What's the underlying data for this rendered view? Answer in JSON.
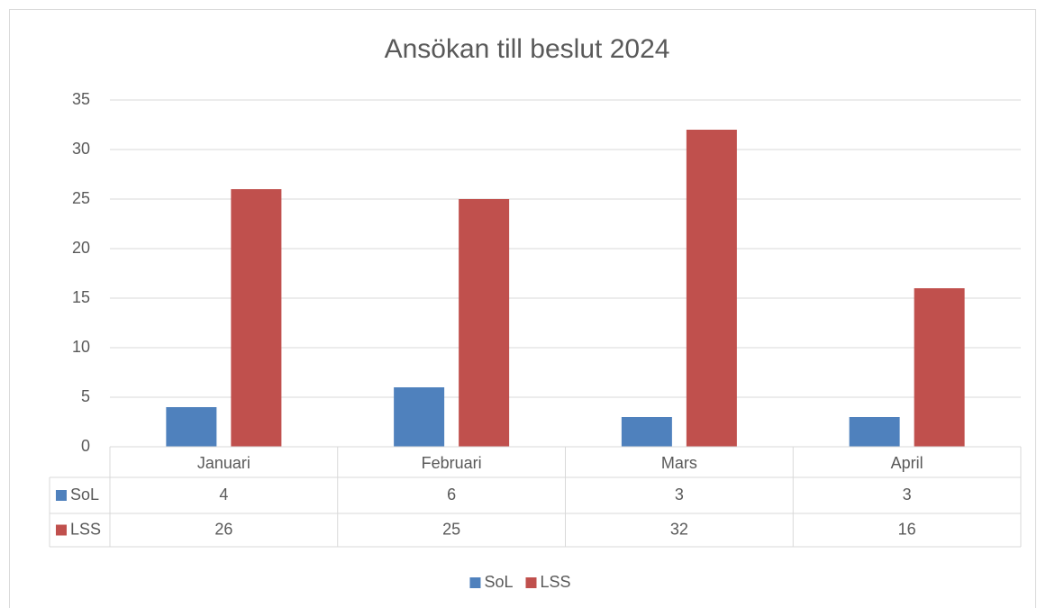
{
  "chart_data": {
    "type": "bar",
    "title": "Ansökan till beslut 2024",
    "categories": [
      "Januari",
      "Februari",
      "Mars",
      "April"
    ],
    "series": [
      {
        "name": "SoL",
        "color": "#4f81bd",
        "values": [
          4,
          6,
          3,
          3
        ]
      },
      {
        "name": "LSS",
        "color": "#c0504d",
        "values": [
          26,
          25,
          32,
          16
        ]
      }
    ],
    "ylim": [
      0,
      35
    ],
    "yticks": [
      0,
      5,
      10,
      15,
      20,
      25,
      30,
      35
    ],
    "grid": true,
    "legend": "bottom",
    "data_table": true
  }
}
